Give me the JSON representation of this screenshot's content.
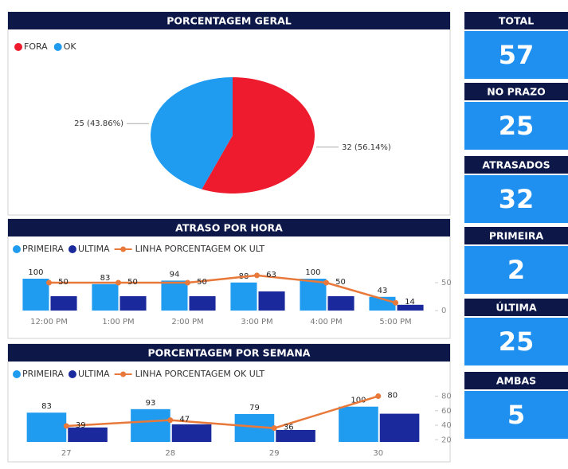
{
  "chart_data": [
    {
      "type": "pie",
      "title": "PORCENTAGEM GERAL",
      "categories": [
        "FORA",
        "OK"
      ],
      "values": [
        32,
        25
      ],
      "value_labels": [
        "32 (56.14%)",
        "25 (43.86%)"
      ],
      "colors": [
        "#ee1b2e",
        "#1f9bf0"
      ],
      "legend": "top-left"
    },
    {
      "type": "combo",
      "title": "ATRASO POR HORA",
      "categories": [
        "12:00 PM",
        "1:00 PM",
        "2:00 PM",
        "3:00 PM",
        "4:00 PM",
        "5:00 PM"
      ],
      "series": [
        {
          "name": "PRIMEIRA",
          "color": "#1f9bf0",
          "kind": "bar",
          "values": [
            100,
            83,
            94,
            88,
            100,
            43
          ],
          "labels": true
        },
        {
          "name": "ULTIMA",
          "color": "#1a2a9c",
          "kind": "bar",
          "values": [
            45,
            45,
            45,
            60,
            45,
            18
          ],
          "labels": false
        },
        {
          "name": "LINHA PORCENTAGEM OK ULT",
          "color": "#e8793a",
          "kind": "line",
          "axis": "y2",
          "values": [
            50,
            50,
            50,
            63,
            50,
            14
          ],
          "labels": true
        }
      ],
      "ylim": [
        0,
        140
      ],
      "yticks": [],
      "y2lim": [
        0,
        80
      ],
      "y2ticks": [
        0,
        50
      ],
      "legend": "top-left"
    },
    {
      "type": "combo",
      "title": "PORCENTAGEM POR SEMANA",
      "categories": [
        "27",
        "28",
        "29",
        "30"
      ],
      "series": [
        {
          "name": "PRIMEIRA",
          "color": "#1f9bf0",
          "kind": "bar",
          "values": [
            83,
            93,
            79,
            100
          ],
          "labels": true
        },
        {
          "name": "ULTIMA",
          "color": "#1a2a9c",
          "kind": "bar",
          "values": [
            41,
            50,
            34,
            80
          ],
          "labels": false
        },
        {
          "name": "LINHA PORCENTAGEM OK ULT",
          "color": "#e8793a",
          "kind": "line",
          "axis": "y2",
          "values": [
            39,
            47,
            36,
            80
          ],
          "labels": true
        }
      ],
      "ylim": [
        0,
        140
      ],
      "yticks": [],
      "y2lim": [
        17,
        85
      ],
      "y2ticks": [
        20,
        40,
        60,
        80
      ],
      "legend": "top-left"
    }
  ],
  "cards": [
    {
      "label": "TOTAL",
      "value": 57
    },
    {
      "label": "NO PRAZO",
      "value": 25
    },
    {
      "label": "ATRASADOS",
      "value": 32
    },
    {
      "label": "PRIMEIRA",
      "value": 2
    },
    {
      "label": "ÚLTIMA",
      "value": 25
    },
    {
      "label": "AMBAS",
      "value": 5
    }
  ]
}
